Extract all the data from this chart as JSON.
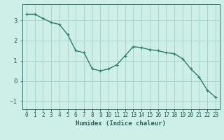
{
  "x": [
    0,
    1,
    2,
    3,
    4,
    5,
    6,
    7,
    8,
    9,
    10,
    11,
    12,
    13,
    14,
    15,
    16,
    17,
    18,
    19,
    20,
    21,
    22,
    23
  ],
  "y": [
    3.3,
    3.3,
    3.1,
    2.9,
    2.8,
    2.3,
    1.5,
    1.4,
    0.6,
    0.5,
    0.6,
    0.8,
    1.25,
    1.7,
    1.65,
    1.55,
    1.5,
    1.4,
    1.35,
    1.1,
    0.6,
    0.2,
    -0.45,
    -0.8
  ],
  "line_color": "#2a7f6f",
  "marker": "+",
  "markersize": 3.5,
  "linewidth": 1.0,
  "bg_color": "#ceeee8",
  "plot_bg_color": "#ceeee8",
  "grid_color": "#aad4ce",
  "xlabel": "Humidex (Indice chaleur)",
  "xlabel_fontsize": 6.5,
  "xlabel_color": "#2a5f5a",
  "tick_color": "#2a5f5a",
  "tick_fontsize": 5.5,
  "ytick_fontsize": 6.5,
  "yticks": [
    -1,
    0,
    1,
    2,
    3
  ],
  "xlim": [
    -0.5,
    23.5
  ],
  "ylim": [
    -1.4,
    3.8
  ],
  "xtick_labels": [
    "0",
    "1",
    "2",
    "3",
    "4",
    "5",
    "6",
    "7",
    "8",
    "9",
    "10",
    "11",
    "12",
    "13",
    "14",
    "15",
    "16",
    "17",
    "18",
    "19",
    "20",
    "21",
    "22",
    "23"
  ]
}
